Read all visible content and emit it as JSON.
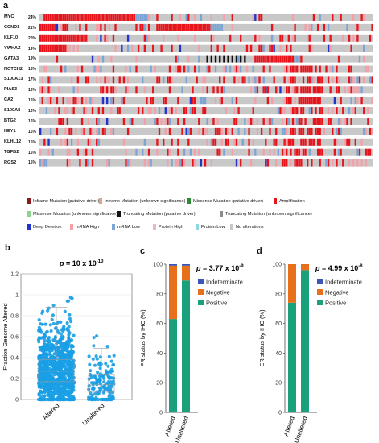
{
  "panels": {
    "a": "a",
    "b": "b",
    "c": "c",
    "d": "d"
  },
  "oncoprint": {
    "genes": [
      {
        "name": "MYC",
        "pct": "24%"
      },
      {
        "name": "CCND1",
        "pct": "21%"
      },
      {
        "name": "KLF10",
        "pct": "20%"
      },
      {
        "name": "YWHAZ",
        "pct": "19%"
      },
      {
        "name": "GATA3",
        "pct": "19%"
      },
      {
        "name": "NOTCH2",
        "pct": "18%"
      },
      {
        "name": "S100A13",
        "pct": "17%"
      },
      {
        "name": "PIAS3",
        "pct": "16%"
      },
      {
        "name": "CA2",
        "pct": "16%"
      },
      {
        "name": "S100A8",
        "pct": "16%"
      },
      {
        "name": "BTG2",
        "pct": "16%"
      },
      {
        "name": "HEY1",
        "pct": "15%"
      },
      {
        "name": "KLHL12",
        "pct": "15%"
      },
      {
        "name": "TGFB2",
        "pct": "15%"
      },
      {
        "name": "RGS2",
        "pct": "15%"
      }
    ],
    "legend": [
      {
        "label": "Inframe Mutation (putative driver)",
        "color": "#8b1a1a"
      },
      {
        "label": "Inframe Mutation (unknown significance)",
        "color": "#d9a68c"
      },
      {
        "label": "Missense Mutation (putative driver)",
        "color": "#2e8b2e"
      },
      {
        "label": "Amplification",
        "color": "#e8141c"
      },
      {
        "label": "Missense Mutation (unknown significance)",
        "color": "#8fd18f"
      },
      {
        "label": "Truncating Mutation (putative driver)",
        "color": "#111111"
      },
      {
        "label": "Truncating Mutation (unknown significance)",
        "color": "#8c8c8c"
      },
      {
        "label": "Deep Deletion",
        "color": "#2233cc"
      },
      {
        "label": "mRNA High",
        "color": "#f4a0a8"
      },
      {
        "label": "mRNA Low",
        "color": "#7aa5d6"
      },
      {
        "label": "Protein High",
        "color": "#e6b8c8"
      },
      {
        "label": "Protein Low",
        "color": "#8fd8e8"
      },
      {
        "label": "No alterations",
        "color": "#c8c8c8"
      }
    ]
  },
  "chart_data": [
    {
      "type": "scatter",
      "panel": "b",
      "categories": [
        "Altered",
        "Unaltered"
      ],
      "ylabel": "Fraction Genome Altered",
      "ylim": [
        0,
        1.2
      ],
      "yticks": [
        "0",
        "0.2",
        "0.4",
        "0.6",
        "0.8",
        "1",
        "1.2"
      ],
      "annotation": {
        "p": "p",
        "eq": " = 10 x 10",
        "exp": "-10"
      },
      "box": [
        {
          "category": "Altered",
          "q1": 0.17,
          "median": 0.27,
          "q3": 0.38,
          "whisker_low": 0.0,
          "whisker_high": 0.88
        },
        {
          "category": "Unaltered",
          "q1": 0.07,
          "median": 0.14,
          "q3": 0.24,
          "whisker_low": 0.0,
          "whisker_high": 0.49
        }
      ],
      "color": "#1a9fe6"
    },
    {
      "type": "bar",
      "panel": "c",
      "stacked": true,
      "categories": [
        "Altered",
        "Unaltered"
      ],
      "ylabel": "PR status by IHC (%)",
      "ylim": [
        0,
        100
      ],
      "yticks": [
        "0",
        "20",
        "40",
        "60",
        "80",
        "100"
      ],
      "annotation": {
        "p": "p",
        "eq": " = 3.77 x 10",
        "exp": "-9"
      },
      "series": [
        {
          "name": "Positive",
          "color": "#1aa07a",
          "values": [
            63,
            89
          ]
        },
        {
          "name": "Negative",
          "color": "#e8701a",
          "values": [
            36,
            10
          ]
        },
        {
          "name": "Indeterminate",
          "color": "#3a56b8",
          "values": [
            1,
            1
          ]
        }
      ]
    },
    {
      "type": "bar",
      "panel": "d",
      "stacked": true,
      "categories": [
        "Altered",
        "Unaltered"
      ],
      "ylabel": "ER status by IHC (%)",
      "ylim": [
        0,
        100
      ],
      "yticks": [
        "0",
        "20",
        "40",
        "60",
        "80",
        "100"
      ],
      "annotation": {
        "p": "p",
        "eq": " = 4.99 x 10",
        "exp": "-8"
      },
      "series": [
        {
          "name": "Positive",
          "color": "#1aa07a",
          "values": [
            74,
            96
          ]
        },
        {
          "name": "Negative",
          "color": "#e8701a",
          "values": [
            26,
            4
          ]
        },
        {
          "name": "Indeterminate",
          "color": "#3a56b8",
          "values": [
            0,
            0
          ]
        }
      ]
    }
  ]
}
